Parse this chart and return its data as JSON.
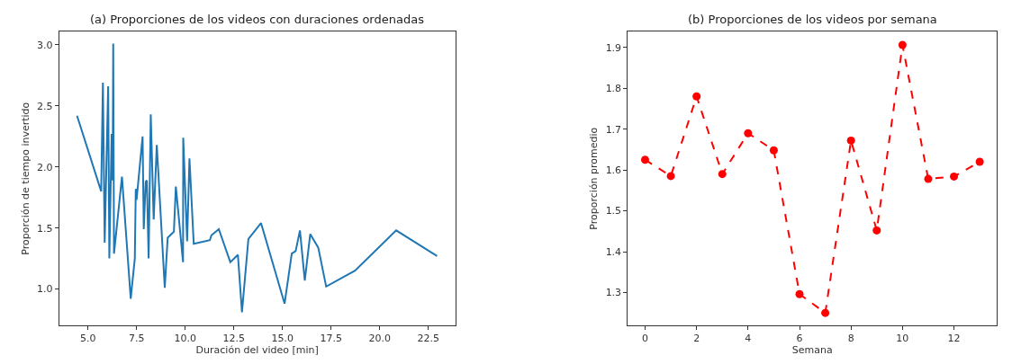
{
  "chart_data": [
    {
      "type": "line",
      "title": "(a) Proporciones de los videos con duraciones ordenadas",
      "xlabel": "Duración del video [min]",
      "ylabel": "Proporción de tiempo invertido",
      "x": [
        4.44,
        5.68,
        5.77,
        5.86,
        6.04,
        6.1,
        6.22,
        6.27,
        6.3,
        6.34,
        6.75,
        7.2,
        7.41,
        7.46,
        7.5,
        7.81,
        7.87,
        7.97,
        8.03,
        8.12,
        8.23,
        8.38,
        8.54,
        8.95,
        9.1,
        9.42,
        9.52,
        9.89,
        9.9,
        10.1,
        10.22,
        10.44,
        11.27,
        11.35,
        11.73,
        12.32,
        12.71,
        12.92,
        13.25,
        13.9,
        15.11,
        15.48,
        15.68,
        15.9,
        16.15,
        16.43,
        16.84,
        17.25,
        18.73,
        20.85,
        22.95
      ],
      "series": [
        {
          "color": "#1f77b4",
          "values": [
            2.42,
            1.8,
            2.69,
            1.38,
            2.66,
            1.25,
            2.27,
            1.89,
            3.01,
            1.29,
            1.92,
            0.92,
            1.25,
            1.82,
            1.73,
            2.25,
            1.49,
            1.88,
            1.89,
            1.25,
            2.43,
            1.57,
            2.18,
            1.01,
            1.42,
            1.47,
            1.84,
            1.22,
            2.24,
            1.39,
            2.07,
            1.37,
            1.4,
            1.44,
            1.49,
            1.22,
            1.28,
            0.81,
            1.41,
            1.54,
            0.88,
            1.29,
            1.31,
            1.48,
            1.07,
            1.45,
            1.34,
            1.02,
            1.15,
            1.48,
            1.27
          ]
        }
      ],
      "xlim": [
        3.52,
        23.89
      ],
      "ylim": [
        0.7,
        3.11
      ],
      "xticks": [
        {
          "value": 5,
          "label": "5.0"
        },
        7.5,
        {
          "value": 10,
          "label": "10.0"
        },
        12.5,
        {
          "value": 15,
          "label": "15.0"
        },
        17.5,
        {
          "value": 20,
          "label": "20.0"
        },
        22.5
      ],
      "yticks": [
        {
          "value": 1,
          "label": "1.0"
        },
        1.5,
        {
          "value": 2,
          "label": "2.0"
        },
        2.5,
        {
          "value": 3,
          "label": "3.0"
        }
      ],
      "marker": "none",
      "line_style": "solid"
    },
    {
      "type": "line",
      "title": "(b) Proporciones de los videos por semana",
      "xlabel": "Semana",
      "ylabel": "Proporción promedio",
      "x": [
        0,
        1,
        2,
        3,
        4,
        5,
        6,
        7,
        8,
        9,
        10,
        11,
        12,
        13
      ],
      "series": [
        {
          "color": "#ff0000",
          "values": [
            1.625,
            1.585,
            1.78,
            1.59,
            1.69,
            1.648,
            1.296,
            1.25,
            1.672,
            1.452,
            1.906,
            1.578,
            1.584,
            1.62
          ]
        }
      ],
      "xlim": [
        -0.67,
        13.67
      ],
      "ylim": [
        1.219,
        1.939
      ],
      "xticks": [
        0,
        2,
        4,
        6,
        8,
        10,
        12
      ],
      "yticks": [
        1.3,
        1.4,
        1.5,
        1.6,
        1.7,
        1.8,
        1.9
      ],
      "marker": "circle",
      "line_style": "dashed"
    }
  ]
}
